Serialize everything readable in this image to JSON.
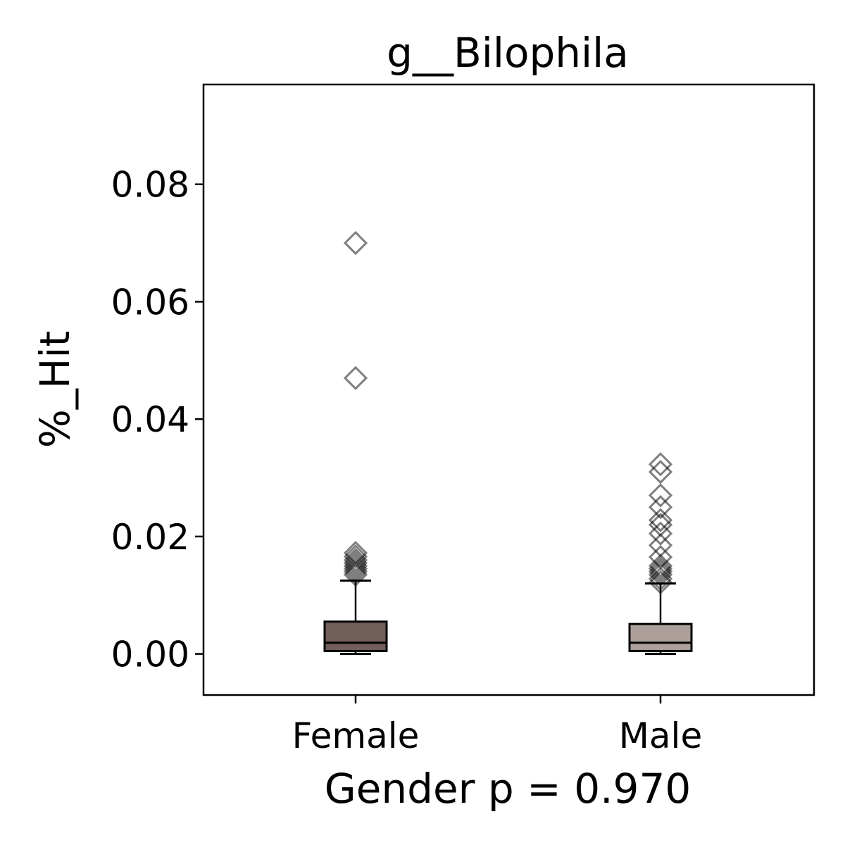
{
  "chart_data": {
    "type": "box",
    "title": "g__Bilophila",
    "xlabel": "Gender p = 0.970",
    "ylabel": "%_Hit",
    "categories": [
      "Female",
      "Male"
    ],
    "ylim": [
      -0.007,
      0.097
    ],
    "yticks": [
      0.0,
      0.02,
      0.04,
      0.06,
      0.08
    ],
    "ytick_labels": [
      "0.00",
      "0.02",
      "0.04",
      "0.06",
      "0.08"
    ],
    "grid": false,
    "series": [
      {
        "category": "Female",
        "color": "#725f5b",
        "min": 0.0,
        "q1": 0.0005,
        "median": 0.0019,
        "q3": 0.0055,
        "max": 0.0125,
        "outliers": [
          0.07,
          0.047,
          0.0172,
          0.0166,
          0.016,
          0.0155,
          0.015,
          0.0145,
          0.014,
          0.0135
        ]
      },
      {
        "category": "Male",
        "color": "#ada09a",
        "min": 0.0,
        "q1": 0.0005,
        "median": 0.0019,
        "q3": 0.0051,
        "max": 0.012,
        "outliers": [
          0.0323,
          0.031,
          0.027,
          0.025,
          0.0228,
          0.022,
          0.0205,
          0.0185,
          0.0165,
          0.015,
          0.0145,
          0.014,
          0.0135,
          0.0128,
          0.0122
        ]
      }
    ]
  }
}
